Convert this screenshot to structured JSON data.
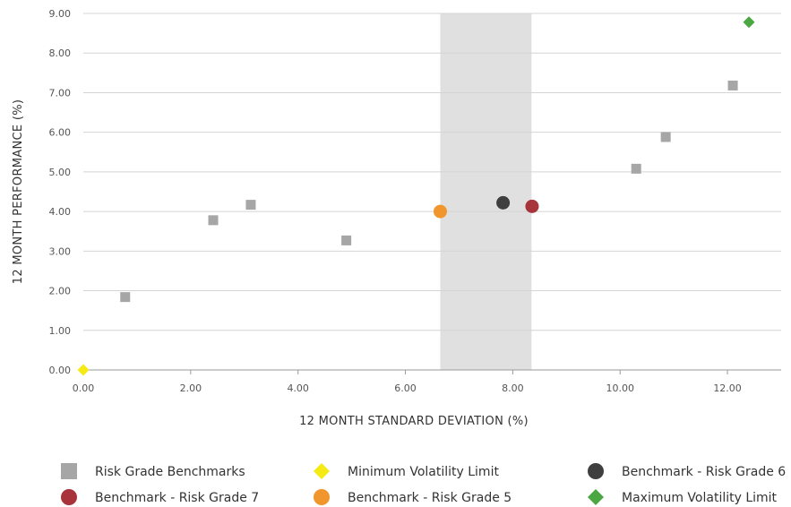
{
  "chart_data": {
    "type": "scatter",
    "xlabel": "12 MONTH STANDARD DEVIATION (%)",
    "ylabel": "12 MONTH PERFORMANCE (%)",
    "xlim": [
      0,
      13
    ],
    "ylim": [
      0,
      9
    ],
    "grid": "horizontal",
    "legend_position": "bottom",
    "x_ticks": [
      "0.00",
      "2.00",
      "4.00",
      "6.00",
      "8.00",
      "10.00",
      "12.00"
    ],
    "x_tick_values": [
      0,
      2,
      4,
      6,
      8,
      10,
      12
    ],
    "y_ticks": [
      "0.00",
      "1.00",
      "2.00",
      "3.00",
      "4.00",
      "5.00",
      "6.00",
      "7.00",
      "8.00",
      "9.00"
    ],
    "y_tick_values": [
      0,
      1,
      2,
      3,
      4,
      5,
      6,
      7,
      8,
      9
    ],
    "shaded_band": {
      "x_from": 6.65,
      "x_to": 8.35,
      "color": "#e0e0e0"
    },
    "series": [
      {
        "name": "Risk Grade Benchmarks",
        "marker": "square",
        "color": "#a6a6a6",
        "points": [
          [
            0.78,
            1.84
          ],
          [
            2.42,
            3.78
          ],
          [
            3.12,
            4.17
          ],
          [
            4.9,
            3.27
          ],
          [
            10.3,
            5.08
          ],
          [
            10.85,
            5.88
          ],
          [
            12.1,
            7.18
          ]
        ]
      },
      {
        "name": "Benchmark - Risk Grade 5",
        "marker": "circle",
        "color": "#f0962d",
        "points": [
          [
            6.65,
            4.0
          ]
        ]
      },
      {
        "name": "Benchmark - Risk Grade 6",
        "marker": "circle",
        "color": "#3f3f3f",
        "points": [
          [
            7.82,
            4.22
          ]
        ]
      },
      {
        "name": "Benchmark - Risk Grade 7",
        "marker": "circle",
        "color": "#a8333a",
        "points": [
          [
            8.36,
            4.13
          ]
        ]
      },
      {
        "name": "Minimum Volatility Limit",
        "marker": "diamond",
        "color": "#f5ea14",
        "points": [
          [
            0.0,
            0.0
          ]
        ]
      },
      {
        "name": "Maximum Volatility Limit",
        "marker": "diamond",
        "color": "#4aa742",
        "points": [
          [
            12.4,
            8.78
          ]
        ]
      }
    ],
    "legend_order": [
      0,
      3,
      4,
      1,
      2,
      5
    ]
  }
}
